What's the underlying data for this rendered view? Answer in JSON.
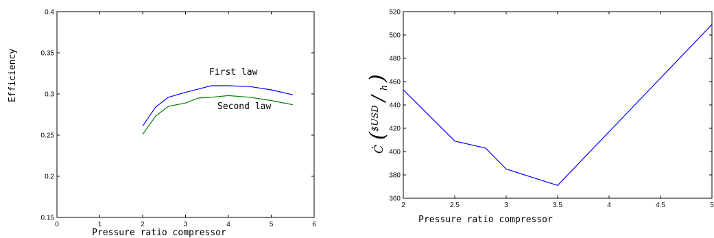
{
  "chart_data": [
    {
      "type": "line",
      "title": "",
      "xlabel": "Pressure ratio compressor",
      "ylabel": "Efficiency",
      "xlim": [
        0,
        6
      ],
      "ylim": [
        0.15,
        0.4
      ],
      "xticks": [
        "0",
        "1",
        "2",
        "3",
        "4",
        "5",
        "6"
      ],
      "yticks": [
        "0.15",
        "0.2",
        "0.25",
        "0.3",
        "0.35",
        "0.4"
      ],
      "grid": false,
      "annotations": [
        {
          "text": "First law",
          "series": "First law"
        },
        {
          "text": "Second law",
          "series": "Second law"
        }
      ],
      "series": [
        {
          "name": "First law",
          "color": "#0000ff",
          "x": [
            2.0,
            2.3,
            2.6,
            3.0,
            3.3,
            3.6,
            4.0,
            4.5,
            5.0,
            5.5
          ],
          "y": [
            0.261,
            0.284,
            0.296,
            0.302,
            0.306,
            0.31,
            0.31,
            0.309,
            0.305,
            0.299
          ]
        },
        {
          "name": "Second law",
          "color": "#008000",
          "x": [
            2.0,
            2.3,
            2.6,
            3.0,
            3.3,
            3.6,
            4.0,
            4.5,
            5.0,
            5.5
          ],
          "y": [
            0.251,
            0.273,
            0.285,
            0.289,
            0.295,
            0.296,
            0.298,
            0.296,
            0.292,
            0.287
          ]
        }
      ]
    },
    {
      "type": "line",
      "title": "",
      "xlabel": "Pressure ratio compressor",
      "ylabel": "Ċ ($USD/h)",
      "xlim": [
        2,
        5
      ],
      "ylim": [
        360,
        520
      ],
      "xticks": [
        "2",
        "2.5",
        "3",
        "3.5",
        "4",
        "4.5",
        "5"
      ],
      "yticks": [
        "360",
        "380",
        "400",
        "420",
        "440",
        "460",
        "480",
        "500",
        "520"
      ],
      "grid": false,
      "series": [
        {
          "color": "#0000ff",
          "x": [
            2.0,
            2.5,
            2.8,
            3.0,
            3.5,
            5.0
          ],
          "y": [
            453,
            409,
            403,
            385,
            371,
            509
          ]
        }
      ]
    }
  ]
}
